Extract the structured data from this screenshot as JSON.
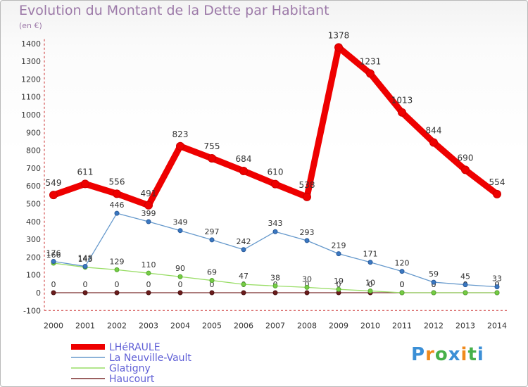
{
  "title": "Evolution du Montant de la Dette par Habitant",
  "subtitle": "(en €)",
  "chart_data": {
    "type": "line",
    "title": "Evolution du Montant de la Dette par Habitant",
    "subtitle": "(en €)",
    "x": [
      "2000",
      "2001",
      "2002",
      "2003",
      "2004",
      "2005",
      "2006",
      "2007",
      "2008",
      "2009",
      "2010",
      "2011",
      "2012",
      "2013",
      "2014"
    ],
    "ylim": [
      -100,
      1400
    ],
    "yticks": [
      -100,
      0,
      100,
      200,
      300,
      400,
      500,
      600,
      700,
      800,
      900,
      1000,
      1100,
      1200,
      1300,
      1400
    ],
    "grid": false,
    "legend_position": "bottom-left",
    "series": [
      {
        "name": "Haucourt",
        "color": "#7a2c2c",
        "values": [
          0,
          0,
          0,
          0,
          0,
          0,
          0,
          0,
          0,
          0,
          0,
          0,
          0,
          0,
          0
        ]
      },
      {
        "name": "Glatigny",
        "color": "#99dd66",
        "values": [
          166,
          143,
          129,
          110,
          90,
          69,
          47,
          38,
          30,
          19,
          10,
          0,
          0,
          0,
          0
        ]
      },
      {
        "name": "La Neuville-Vault",
        "color": "#6699cc",
        "values": [
          176,
          148,
          446,
          399,
          349,
          297,
          242,
          343,
          293,
          219,
          171,
          120,
          59,
          45,
          33
        ]
      },
      {
        "name": "LHéRAULE",
        "color": "#ee0000",
        "values": [
          549,
          611,
          556,
          491,
          823,
          755,
          684,
          610,
          538,
          1378,
          1231,
          1013,
          844,
          690,
          554
        ]
      }
    ]
  },
  "legend": [
    {
      "name": "LHéRAULE",
      "color": "#ee0000"
    },
    {
      "name": "La Neuville-Vault",
      "color": "#6699cc"
    },
    {
      "name": "Glatigny",
      "color": "#99dd66"
    },
    {
      "name": "Haucourt",
      "color": "#7a2c2c"
    }
  ],
  "logo": {
    "text": "Proxiti",
    "colors": [
      "#3b8fd6",
      "#f08a1c",
      "#46b04a",
      "#3b8fd6",
      "#f08a1c",
      "#46b04a",
      "#3b8fd6"
    ]
  }
}
